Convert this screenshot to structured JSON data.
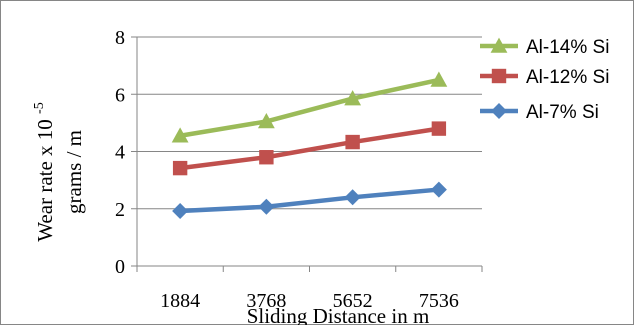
{
  "chart_data": {
    "type": "line",
    "categories": [
      "1884",
      "3768",
      "5652",
      "7536"
    ],
    "xlabel": "Sliding Distance in m",
    "ylabel_line1": "Wear  rate  x 10",
    "ylabel_exponent": "-5",
    "ylabel_line2": "grams  / m",
    "ylim": [
      0,
      8
    ],
    "yticks": [
      0,
      2,
      4,
      6,
      8
    ],
    "grid": "horizontal",
    "legend_position": "right",
    "series": [
      {
        "name": "Al-14% Si",
        "values": [
          4.55,
          5.05,
          5.85,
          6.5
        ],
        "color": "#9BBB59",
        "marker": "triangle"
      },
      {
        "name": "Al-12% Si",
        "values": [
          3.42,
          3.8,
          4.33,
          4.8
        ],
        "color": "#C0504D",
        "marker": "square"
      },
      {
        "name": "Al-7% Si",
        "values": [
          1.92,
          2.07,
          2.4,
          2.67
        ],
        "color": "#4F81BD",
        "marker": "diamond"
      }
    ]
  }
}
